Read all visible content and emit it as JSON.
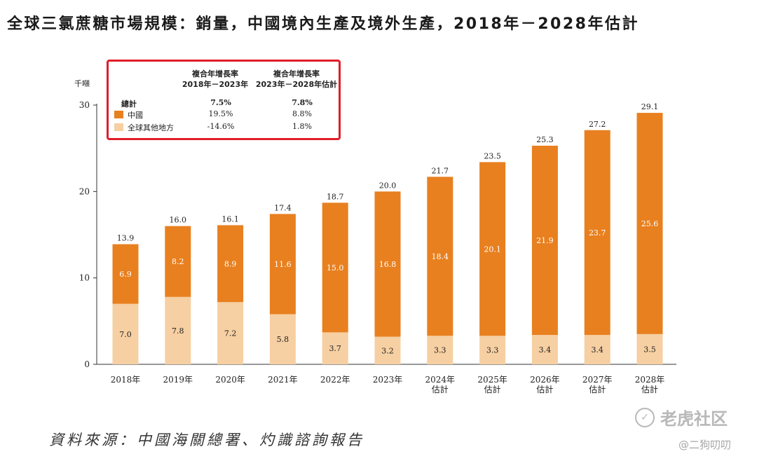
{
  "title": "全球三氯蔗糖市場規模：銷量，中國境內生產及境外生產，2018年－2028年估計",
  "source_note": "資料來源：中國海關總署、灼識諮詢報告",
  "watermark": {
    "brand": "老虎社区",
    "user": "@二狗叨叨"
  },
  "legend": {
    "header_1": "複合年增長率\n2018年－2023年",
    "header_2": "複合年增長率\n2023年－2028年估計",
    "rows": [
      {
        "label": "總計",
        "cagr_2018_2023": "7.5%",
        "cagr_2023_2028": "7.8%"
      },
      {
        "label": "中國",
        "cagr_2018_2023": "19.5%",
        "cagr_2023_2028": "8.8%"
      },
      {
        "label": "全球其他地方",
        "cagr_2018_2023": "-14.6%",
        "cagr_2023_2028": "1.8%"
      }
    ]
  },
  "colors": {
    "china": "#e8801f",
    "rest_of_world": "#f6cfa2",
    "legend_border": "#e01d2a"
  },
  "chart_data": {
    "type": "bar",
    "stacked": true,
    "y_unit_label": "千噸",
    "ylim": [
      0,
      30
    ],
    "yticks": [
      0,
      10,
      20,
      30
    ],
    "categories": [
      "2018年",
      "2019年",
      "2020年",
      "2021年",
      "2022年",
      "2023年",
      "2024年\n估計",
      "2025年\n估計",
      "2026年\n估計",
      "2027年\n估計",
      "2028年\n估計"
    ],
    "series": [
      {
        "name": "全球其他地方",
        "values": [
          7.0,
          7.8,
          7.2,
          5.8,
          3.7,
          3.2,
          3.3,
          3.3,
          3.4,
          3.4,
          3.5
        ]
      },
      {
        "name": "中國",
        "values": [
          6.9,
          8.2,
          8.9,
          11.6,
          15.0,
          16.8,
          18.4,
          20.1,
          21.9,
          23.7,
          25.6
        ]
      }
    ],
    "totals": [
      13.9,
      16.0,
      16.1,
      17.4,
      18.7,
      20.0,
      21.7,
      23.5,
      25.3,
      27.2,
      29.1
    ],
    "grid": false,
    "legend_position": "top-left"
  }
}
